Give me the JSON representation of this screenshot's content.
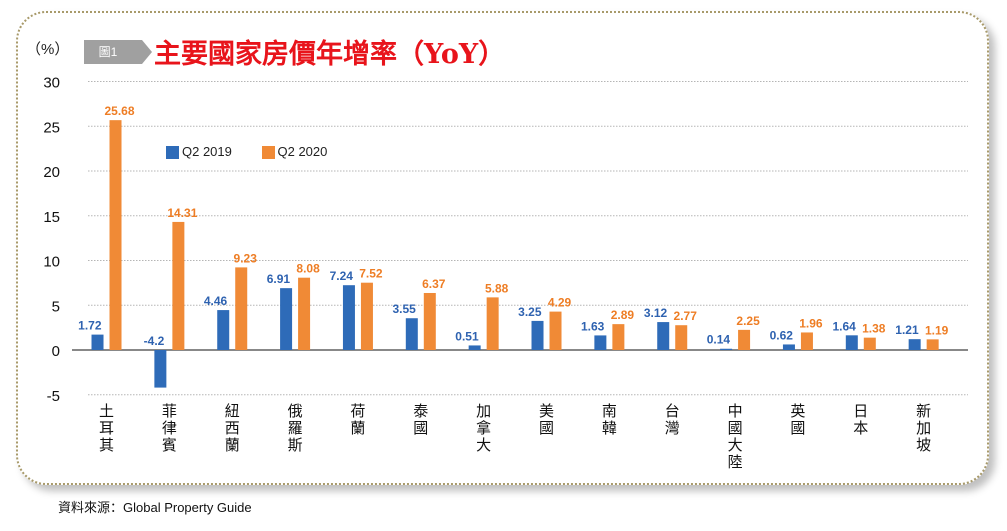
{
  "header": {
    "unit_label": "（%）",
    "figure_badge": "圖1",
    "title": "主要國家房價年增率（YoY）"
  },
  "footer": {
    "source": "資料來源：Global Property Guide"
  },
  "chart_data": {
    "type": "bar",
    "title": "主要國家房價年增率（YoY）",
    "xlabel": "",
    "ylabel": "（%）",
    "ylim": [
      -5,
      30
    ],
    "yticks": [
      30,
      25,
      20,
      15,
      10,
      5,
      0,
      -5
    ],
    "grid": true,
    "legend_position": "top-left",
    "categories": [
      "土耳其",
      "菲律賓",
      "紐西蘭",
      "俄羅斯",
      "荷蘭",
      "泰國",
      "加拿大",
      "美國",
      "南韓",
      "台灣",
      "中國大陸",
      "英國",
      "日本",
      "新加坡"
    ],
    "series": [
      {
        "name": "Q2 2019",
        "color": "#2e6bb8",
        "label_color": "#2e62b0",
        "values": [
          1.72,
          -4.2,
          4.46,
          6.91,
          7.24,
          3.55,
          0.51,
          3.25,
          1.63,
          3.12,
          0.14,
          0.62,
          1.64,
          1.21
        ]
      },
      {
        "name": "Q2 2020",
        "color": "#f08a36",
        "label_color": "#ee7d24",
        "values": [
          25.68,
          14.31,
          9.23,
          8.08,
          7.52,
          6.37,
          5.88,
          4.29,
          2.89,
          2.77,
          2.25,
          1.96,
          1.38,
          1.19
        ]
      }
    ]
  }
}
